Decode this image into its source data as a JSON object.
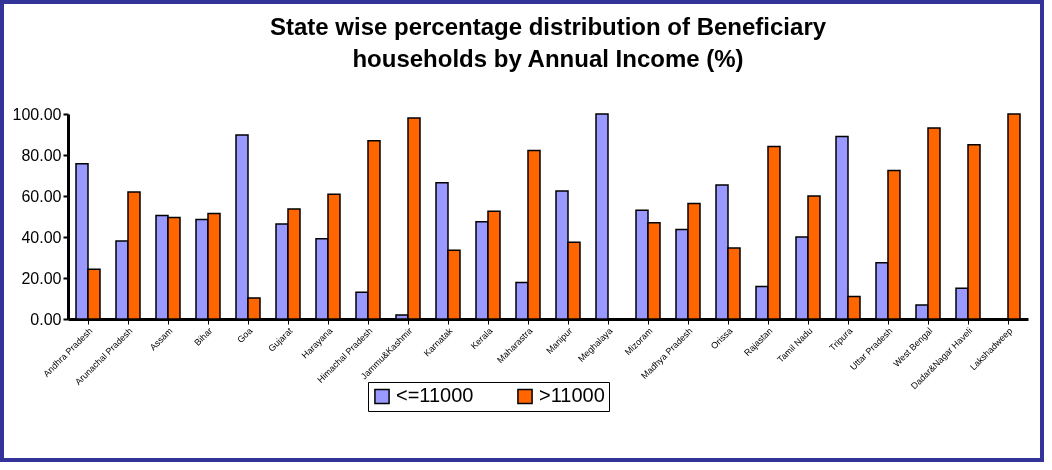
{
  "chart_data": {
    "type": "bar",
    "title": "State wise percentage distribution of Beneficiary households by Annual  Income (%)",
    "categories": [
      "Andhra Pradesh",
      "Arunachal Pradesh",
      "Assam",
      "Bihar",
      "Goa",
      "Gujarat",
      "Harayana",
      "Himachal Pradesh",
      "Jammu&Kashmir",
      "Karnatak",
      "Kerala",
      "Maharastra",
      "Manipur",
      "Meghalaya",
      "Mizoram",
      "Madhya Pradesh",
      "Orissa",
      "Rajastan",
      "Tamil Nadu",
      "Tripura",
      "Uttar Pradesh",
      "West Bengal",
      "Dadar&Nagar Haveli",
      "Lakshadweep"
    ],
    "series": [
      {
        "name": "<=11000",
        "color": "#9999ff",
        "values": [
          75.7,
          38,
          50.5,
          48.5,
          89.7,
          46.3,
          39.2,
          13,
          2,
          66.5,
          47.4,
          17.8,
          62.5,
          100,
          53,
          43.6,
          65.4,
          15.8,
          40,
          89,
          27.5,
          6.8,
          15,
          null
        ]
      },
      {
        "name": ">11000",
        "color": "#ff6600",
        "values": [
          24.3,
          62,
          49.5,
          51.5,
          10.3,
          53.7,
          60.8,
          87,
          98,
          33.5,
          52.6,
          82.2,
          37.5,
          null,
          47,
          56.4,
          34.6,
          84.2,
          60,
          11,
          72.5,
          93.2,
          85,
          100
        ]
      }
    ],
    "ylim": [
      0,
      100
    ],
    "yticks": [
      {
        "value": 0,
        "label": "0.00"
      },
      {
        "value": 20,
        "label": "20.00"
      },
      {
        "value": 40,
        "label": "40.00"
      },
      {
        "value": 60,
        "label": "60.00"
      },
      {
        "value": 80,
        "label": "80.00"
      },
      {
        "value": 100,
        "label": "100.00"
      }
    ],
    "grid": false,
    "legend": "bottom"
  }
}
